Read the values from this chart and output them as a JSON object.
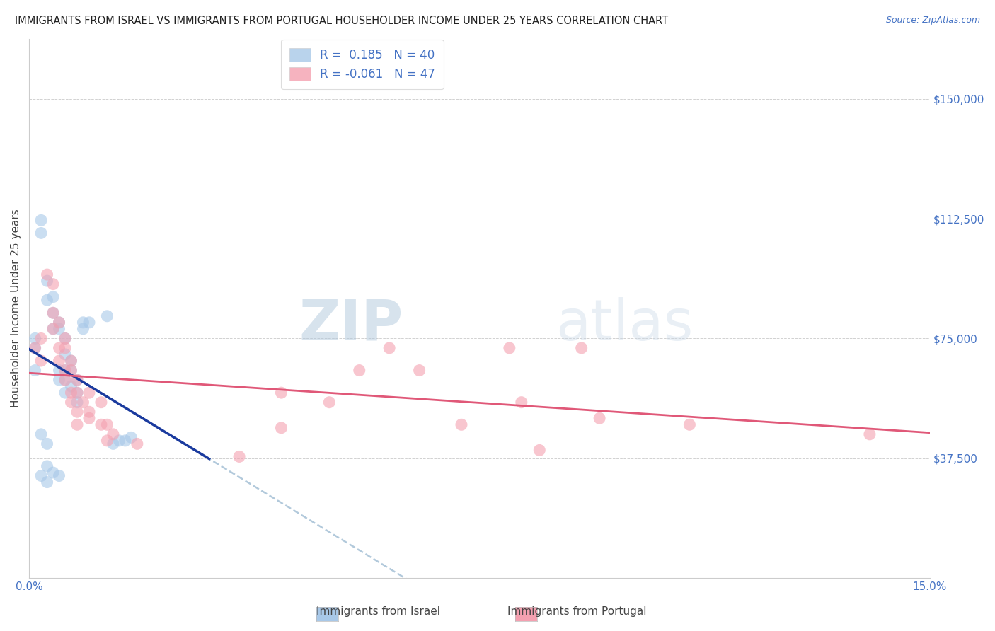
{
  "title": "IMMIGRANTS FROM ISRAEL VS IMMIGRANTS FROM PORTUGAL HOUSEHOLDER INCOME UNDER 25 YEARS CORRELATION CHART",
  "source": "Source: ZipAtlas.com",
  "ylabel": "Householder Income Under 25 years",
  "xmin": 0.0,
  "xmax": 0.15,
  "ymin": 0,
  "ymax": 168750,
  "yticks": [
    0,
    37500,
    75000,
    112500,
    150000
  ],
  "ytick_labels": [
    "",
    "$37,500",
    "$75,000",
    "$112,500",
    "$150,000"
  ],
  "xticks": [
    0.0,
    0.025,
    0.05,
    0.075,
    0.1,
    0.125,
    0.15
  ],
  "legend_israel": "R =  0.185   N = 40",
  "legend_portugal": "R = -0.061   N = 47",
  "israel_color": "#a8c8e8",
  "portugal_color": "#f4a0b0",
  "trendline_israel_color": "#1a3a9e",
  "trendline_portugal_color": "#e05878",
  "dashed_color": "#aac4d8",
  "watermark": "ZIPatlas",
  "israel_R": 0.185,
  "portugal_R": -0.061,
  "israel_points": [
    [
      0.001,
      65000
    ],
    [
      0.001,
      72000
    ],
    [
      0.001,
      75000
    ],
    [
      0.002,
      112000
    ],
    [
      0.002,
      108000
    ],
    [
      0.003,
      93000
    ],
    [
      0.003,
      87000
    ],
    [
      0.004,
      88000
    ],
    [
      0.004,
      83000
    ],
    [
      0.004,
      78000
    ],
    [
      0.005,
      80000
    ],
    [
      0.005,
      78000
    ],
    [
      0.005,
      65000
    ],
    [
      0.005,
      62000
    ],
    [
      0.006,
      75000
    ],
    [
      0.006,
      70000
    ],
    [
      0.006,
      65000
    ],
    [
      0.006,
      62000
    ],
    [
      0.006,
      58000
    ],
    [
      0.007,
      68000
    ],
    [
      0.007,
      65000
    ],
    [
      0.007,
      60000
    ],
    [
      0.008,
      62000
    ],
    [
      0.008,
      58000
    ],
    [
      0.008,
      55000
    ],
    [
      0.009,
      80000
    ],
    [
      0.009,
      78000
    ],
    [
      0.01,
      80000
    ],
    [
      0.013,
      82000
    ],
    [
      0.014,
      42000
    ],
    [
      0.015,
      43000
    ],
    [
      0.016,
      43000
    ],
    [
      0.017,
      44000
    ],
    [
      0.003,
      35000
    ],
    [
      0.004,
      33000
    ],
    [
      0.005,
      32000
    ],
    [
      0.002,
      32000
    ],
    [
      0.003,
      30000
    ],
    [
      0.002,
      45000
    ],
    [
      0.003,
      42000
    ]
  ],
  "portugal_points": [
    [
      0.001,
      72000
    ],
    [
      0.002,
      75000
    ],
    [
      0.002,
      68000
    ],
    [
      0.003,
      95000
    ],
    [
      0.004,
      92000
    ],
    [
      0.004,
      83000
    ],
    [
      0.004,
      78000
    ],
    [
      0.005,
      80000
    ],
    [
      0.005,
      72000
    ],
    [
      0.005,
      68000
    ],
    [
      0.006,
      75000
    ],
    [
      0.006,
      72000
    ],
    [
      0.006,
      65000
    ],
    [
      0.006,
      62000
    ],
    [
      0.007,
      68000
    ],
    [
      0.007,
      65000
    ],
    [
      0.007,
      58000
    ],
    [
      0.007,
      55000
    ],
    [
      0.008,
      62000
    ],
    [
      0.008,
      58000
    ],
    [
      0.008,
      52000
    ],
    [
      0.008,
      48000
    ],
    [
      0.009,
      55000
    ],
    [
      0.01,
      52000
    ],
    [
      0.01,
      58000
    ],
    [
      0.01,
      50000
    ],
    [
      0.012,
      55000
    ],
    [
      0.012,
      48000
    ],
    [
      0.013,
      48000
    ],
    [
      0.013,
      43000
    ],
    [
      0.014,
      45000
    ],
    [
      0.018,
      42000
    ],
    [
      0.035,
      38000
    ],
    [
      0.042,
      58000
    ],
    [
      0.042,
      47000
    ],
    [
      0.05,
      55000
    ],
    [
      0.055,
      65000
    ],
    [
      0.06,
      72000
    ],
    [
      0.065,
      65000
    ],
    [
      0.072,
      48000
    ],
    [
      0.08,
      72000
    ],
    [
      0.082,
      55000
    ],
    [
      0.085,
      40000
    ],
    [
      0.092,
      72000
    ],
    [
      0.095,
      50000
    ],
    [
      0.11,
      48000
    ],
    [
      0.14,
      45000
    ]
  ]
}
